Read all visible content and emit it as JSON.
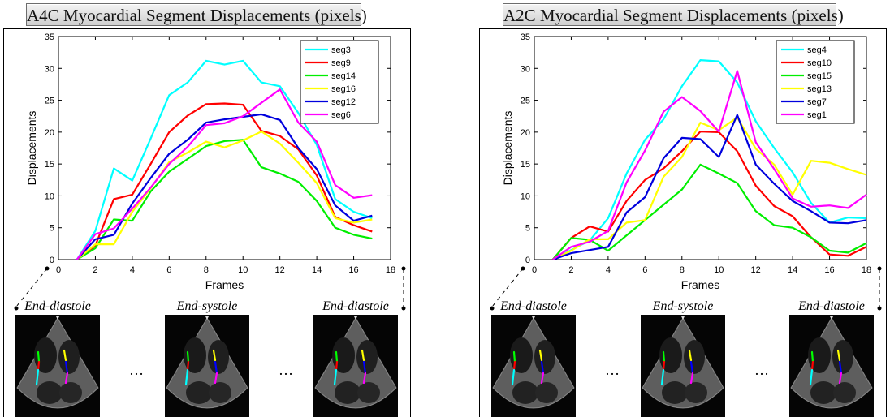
{
  "chart_data": [
    {
      "type": "line",
      "title": "A4C Myocardial Segment Displacements (pixels)",
      "xlabel": "Frames",
      "ylabel": "Displacements",
      "xlim": [
        0,
        18
      ],
      "ylim": [
        0,
        35
      ],
      "xticks": [
        0,
        2,
        4,
        6,
        8,
        10,
        12,
        14,
        16,
        18
      ],
      "yticks": [
        0,
        5,
        10,
        15,
        20,
        25,
        30,
        35
      ],
      "grid": false,
      "legend_position": "top-right",
      "x": [
        1,
        2,
        3,
        4,
        5,
        6,
        7,
        8,
        9,
        10,
        11,
        12,
        13,
        14,
        15,
        16,
        17
      ],
      "series": [
        {
          "name": "seg3",
          "color": "#00ffff",
          "values": [
            0,
            4.5,
            14.3,
            12.4,
            19,
            25.8,
            27.8,
            31.2,
            30.6,
            31.2,
            27.8,
            27.2,
            23,
            18,
            9.5,
            7.5,
            6.5
          ]
        },
        {
          "name": "seg9",
          "color": "#ff0000",
          "values": [
            0,
            2.2,
            9.5,
            10.2,
            15,
            20,
            22.6,
            24.4,
            24.5,
            24.3,
            20.2,
            19.4,
            17.3,
            13.2,
            6.7,
            5.4,
            4.4
          ]
        },
        {
          "name": "seg14",
          "color": "#00ee00",
          "values": [
            0,
            1.8,
            6.3,
            6.1,
            10.7,
            13.8,
            15.8,
            17.8,
            18.6,
            18.8,
            14.5,
            13.5,
            12.2,
            9.2,
            5,
            3.9,
            3.3
          ]
        },
        {
          "name": "seg16",
          "color": "#ffff00",
          "values": [
            0,
            2.4,
            2.4,
            7.5,
            11.2,
            15.3,
            16.8,
            18.5,
            17.6,
            18.7,
            20.1,
            18.2,
            15.2,
            12,
            6.5,
            5.8,
            6.3
          ]
        },
        {
          "name": "seg12",
          "color": "#0000dd",
          "values": [
            0,
            3.2,
            3.9,
            8.8,
            12.8,
            16.6,
            18.8,
            21.5,
            22,
            22.4,
            22.8,
            21.9,
            17.5,
            14.2,
            8.5,
            6.1,
            6.9
          ]
        },
        {
          "name": "seg6",
          "color": "#ff00ff",
          "values": [
            0,
            4,
            4.9,
            8,
            11.3,
            15,
            17.7,
            21.1,
            21.4,
            22.5,
            24.6,
            26.7,
            21.5,
            18.5,
            11.7,
            9.7,
            10.1
          ]
        }
      ],
      "frames": [
        "End-diastole",
        "End-systole",
        "End-diastole"
      ],
      "ellipsis": [
        "…",
        "…"
      ]
    },
    {
      "type": "line",
      "title": "A2C Myocardial Segment Displacements (pixels)",
      "xlabel": "Frames",
      "ylabel": "Displacements",
      "xlim": [
        0,
        18
      ],
      "ylim": [
        0,
        35
      ],
      "xticks": [
        0,
        2,
        4,
        6,
        8,
        10,
        12,
        14,
        16,
        18
      ],
      "yticks": [
        0,
        5,
        10,
        15,
        20,
        25,
        30,
        35
      ],
      "grid": false,
      "legend_position": "top-right",
      "x": [
        1,
        2,
        3,
        4,
        5,
        6,
        7,
        8,
        9,
        10,
        11,
        12,
        13,
        14,
        15,
        16,
        17,
        18
      ],
      "series": [
        {
          "name": "seg4",
          "color": "#00ffff",
          "values": [
            0,
            1.5,
            3,
            6.5,
            13.5,
            18.8,
            22,
            27.2,
            31.3,
            31.1,
            27.8,
            21.7,
            17.5,
            13.7,
            8.9,
            5.8,
            6.6,
            6.5
          ]
        },
        {
          "name": "seg10",
          "color": "#ff0000",
          "values": [
            0,
            3.4,
            5.2,
            4.4,
            9.2,
            12.5,
            14.3,
            17,
            20.1,
            20,
            17,
            11.6,
            8.4,
            6.8,
            3.5,
            0.8,
            0.6,
            2
          ]
        },
        {
          "name": "seg15",
          "color": "#00ee00",
          "values": [
            0,
            3.4,
            3.1,
            1.4,
            3.8,
            6.2,
            8.6,
            11,
            14.9,
            13.5,
            12,
            7.6,
            5.4,
            5,
            3.5,
            1.4,
            1.1,
            2.6
          ]
        },
        {
          "name": "seg13",
          "color": "#ffff00",
          "values": [
            0,
            1.4,
            3.2,
            3.2,
            5.8,
            6.2,
            13,
            16.1,
            21.5,
            20.3,
            22.3,
            17.4,
            14.9,
            10.2,
            15.5,
            15.2,
            14.2,
            13.3
          ]
        },
        {
          "name": "seg7",
          "color": "#0000dd",
          "values": [
            0,
            1,
            1.5,
            2,
            7.4,
            9.8,
            15.9,
            19.1,
            18.9,
            16.1,
            22.7,
            14.9,
            11.9,
            9.2,
            7.6,
            5.8,
            5.7,
            6.2
          ]
        },
        {
          "name": "seg1",
          "color": "#ff00ff",
          "values": [
            0,
            2,
            2.8,
            4.5,
            12.1,
            17.1,
            23.2,
            25.5,
            23.3,
            20.1,
            29.6,
            18.4,
            14.2,
            9.6,
            8.3,
            8.5,
            8.1,
            10.2
          ]
        }
      ],
      "frames": [
        "End-diastole",
        "End-systole",
        "End-diastole"
      ],
      "ellipsis": [
        "…",
        "…"
      ]
    }
  ]
}
